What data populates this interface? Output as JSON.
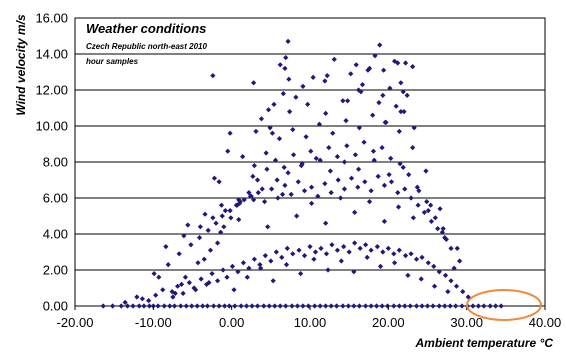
{
  "chart_data": {
    "type": "scatter",
    "title": "Weather conditions",
    "subtitle": "Czech Republic north-east 2010",
    "note": "hour samples",
    "xlabel": "Ambient temperature °C",
    "ylabel": "Wind velocity m/s",
    "xlim": [
      -20,
      40
    ],
    "ylim": [
      0,
      16
    ],
    "x_ticks": [
      "-20.00",
      "-10.00",
      "0.00",
      "10.00",
      "20.00",
      "30.00",
      "40.00"
    ],
    "y_ticks": [
      "0.00",
      "2.00",
      "4.00",
      "6.00",
      "8.00",
      "10.00",
      "12.00",
      "14.00",
      "16.00"
    ],
    "grid": "horizontal",
    "marker_color": "#1f1a7a",
    "highlight_color": "#f08a3c",
    "series": [
      {
        "x": [
          -16.4,
          -15.2,
          -14.1,
          -13.3,
          -12.6,
          -11.8,
          -11.2,
          -10.5,
          -10.0,
          -9.4,
          -8.6,
          -7.9,
          -7.3,
          -6.5,
          -5.8,
          -5.1,
          -4.4,
          -3.7,
          -3.1,
          -2.3,
          -1.6,
          -0.9,
          -0.3,
          0.4,
          1.2,
          1.9,
          2.6,
          3.3,
          4.1,
          4.8,
          5.5,
          6.2,
          6.9,
          7.7,
          8.4,
          9.1,
          9.8,
          10.6,
          11.3,
          12.0,
          12.7,
          13.4,
          14.2,
          14.9,
          15.6,
          16.3,
          17.1,
          17.8,
          18.5,
          19.2,
          19.9,
          20.7,
          21.4,
          22.1,
          22.8,
          23.6,
          24.3,
          25.0,
          25.7,
          26.5,
          27.2,
          27.9,
          28.6,
          29.4,
          30.1,
          30.8,
          31.5,
          32.2,
          33.0,
          33.7,
          34.4,
          -10.6,
          -9.7,
          -8.8,
          -7.5,
          -6.9,
          -6.2,
          -5.4,
          -4.6,
          -3.9,
          -3.2,
          -2.5,
          -1.8,
          -1.1,
          -0.6,
          0.1,
          0.8,
          1.5,
          2.2,
          2.9,
          3.6,
          4.3,
          5.0,
          5.7,
          6.4,
          7.1,
          7.8,
          8.6,
          9.3,
          10.0,
          10.7,
          11.4,
          12.1,
          12.8,
          13.5,
          14.3,
          15.0,
          15.7,
          16.4,
          17.1,
          17.8,
          18.6,
          19.3,
          20.0,
          20.7,
          21.4,
          22.2,
          22.9,
          23.6,
          24.3,
          25.1,
          25.8,
          26.5,
          27.3,
          28.0,
          28.7,
          29.5,
          30.2,
          -9.3,
          -8.1,
          -6.7,
          -5.2,
          -4.1,
          -3.0,
          -2.0,
          -1.2,
          -0.2,
          0.7,
          1.6,
          2.5,
          3.4,
          4.2,
          5.1,
          5.9,
          6.8,
          7.6,
          8.5,
          9.3,
          10.2,
          11.0,
          11.9,
          12.7,
          13.6,
          14.4,
          15.3,
          16.1,
          17.0,
          17.8,
          18.7,
          19.5,
          20.4,
          21.2,
          22.1,
          22.9,
          23.8,
          24.6,
          25.5,
          26.3,
          27.2,
          28.0,
          29.1,
          -7.6,
          -5.9,
          -4.3,
          -2.7,
          -1.4,
          -0.1,
          1.0,
          2.2,
          3.3,
          4.5,
          5.6,
          6.7,
          7.9,
          9.0,
          10.1,
          11.3,
          12.4,
          13.5,
          14.7,
          15.8,
          16.9,
          18.1,
          19.2,
          20.3,
          21.5,
          22.6,
          23.7,
          24.9,
          26.0,
          27.4,
          -6.4,
          -3.5,
          -1.0,
          0.9,
          2.7,
          4.4,
          6.1,
          7.8,
          9.5,
          11.2,
          12.9,
          14.6,
          16.3,
          18.0,
          19.7,
          21.4,
          23.1,
          24.8,
          26.6,
          -1.8,
          0.6,
          2.9,
          5.2,
          7.4,
          9.7,
          12.0,
          14.2,
          16.5,
          18.8,
          21.0,
          23.3,
          -2.2,
          -0.5,
          3.8,
          6.6,
          9.1,
          11.9,
          15.2,
          17.6,
          20.2,
          22.4,
          1.4,
          4.7,
          7.3,
          13.1,
          15.9,
          18.3,
          21.6,
          -1.6,
          5.4,
          8.2,
          12.2,
          16.7,
          19.4,
          22.0,
          3.1,
          6.2,
          10.4,
          14.8,
          18.9,
          21.2,
          -11.4,
          -7.2,
          -4.8,
          -2.9,
          0.3,
          2.0,
          3.7,
          5.3,
          7.0,
          8.8,
          10.5,
          12.3,
          14.0,
          15.6,
          17.3,
          19.0,
          20.8,
          22.5,
          24.2,
          25.9,
          27.6,
          -8.4,
          -5.6,
          -3.4,
          -1.3,
          0.9,
          2.8,
          4.6,
          6.5,
          8.3,
          10.2,
          12.0,
          13.9,
          15.7,
          17.6,
          19.5,
          21.3,
          23.2,
          25.1,
          26.9,
          28.8,
          -13.6,
          -12.1,
          -9.9,
          -6.1,
          -4.0,
          -2.4,
          -0.8,
          1.1,
          2.4,
          3.9,
          5.8,
          7.2,
          8.9,
          10.8,
          12.6,
          14.4,
          16.2,
          18.2,
          20.1,
          21.9,
          23.9,
          25.4,
          27.0,
          28.4,
          4.9,
          6.8,
          7.2,
          17.4,
          19.6,
          20.8,
          21.9,
          22.2,
          23.1,
          -2.4,
          6.9,
          19.3,
          21.6,
          16.2,
          2.8,
          -0.2
        ],
        "y": [
          0.0,
          0.0,
          0.0,
          0.0,
          0.0,
          0.0,
          0.0,
          0.0,
          0.0,
          0.0,
          0.0,
          0.0,
          0.0,
          0.0,
          0.0,
          0.0,
          0.0,
          0.0,
          0.0,
          0.0,
          0.0,
          0.0,
          0.0,
          0.0,
          0.0,
          0.0,
          0.0,
          0.0,
          0.0,
          0.0,
          0.0,
          0.0,
          0.0,
          0.0,
          0.0,
          0.0,
          0.0,
          0.0,
          0.0,
          0.0,
          0.0,
          0.0,
          0.0,
          0.0,
          0.0,
          0.0,
          0.0,
          0.0,
          0.0,
          0.0,
          0.0,
          0.0,
          0.0,
          0.0,
          0.0,
          0.0,
          0.0,
          0.0,
          0.0,
          0.0,
          0.0,
          0.0,
          0.0,
          0.0,
          0.0,
          0.0,
          0.0,
          0.0,
          0.0,
          0.0,
          0.0,
          0.3,
          0.6,
          0.9,
          0.5,
          1.1,
          0.7,
          1.3,
          0.9,
          1.5,
          1.2,
          1.8,
          1.4,
          2.0,
          1.6,
          2.2,
          1.9,
          2.4,
          2.1,
          2.6,
          2.3,
          2.8,
          2.5,
          3.0,
          2.7,
          3.2,
          2.9,
          3.1,
          2.8,
          3.3,
          3.0,
          3.2,
          2.9,
          3.4,
          3.1,
          3.3,
          3.0,
          3.5,
          3.2,
          3.4,
          3.1,
          3.3,
          3.0,
          3.2,
          2.9,
          3.1,
          2.8,
          2.9,
          2.6,
          2.7,
          2.4,
          2.2,
          1.9,
          1.7,
          1.4,
          1.1,
          0.8,
          0.5,
          1.6,
          2.3,
          2.9,
          3.4,
          3.8,
          4.2,
          4.6,
          5.0,
          5.3,
          5.6,
          5.9,
          6.1,
          6.3,
          5.8,
          6.5,
          6.0,
          6.7,
          6.2,
          6.9,
          6.4,
          6.6,
          6.1,
          6.8,
          6.3,
          7.0,
          6.5,
          7.1,
          6.6,
          6.9,
          6.4,
          7.2,
          6.7,
          6.9,
          6.3,
          6.5,
          6.0,
          5.6,
          5.2,
          4.7,
          4.3,
          3.8,
          3.2,
          2.5,
          0.8,
          1.6,
          2.4,
          3.1,
          4.1,
          4.9,
          5.7,
          6.3,
          7.0,
          7.6,
          8.1,
          7.7,
          8.4,
          7.9,
          8.6,
          8.1,
          8.8,
          8.3,
          8.9,
          8.4,
          9.1,
          8.6,
          8.8,
          8.2,
          7.9,
          7.3,
          6.6,
          5.8,
          4.9,
          3.7,
          1.2,
          2.6,
          4.4,
          5.9,
          7.2,
          8.5,
          9.3,
          9.8,
          9.4,
          10.1,
          9.6,
          10.3,
          9.9,
          10.6,
          10.2,
          9.7,
          8.8,
          7.5,
          5.4,
          3.5,
          5.6,
          7.8,
          9.6,
          10.8,
          11.2,
          10.7,
          11.4,
          11.9,
          11.3,
          11.1,
          9.9,
          7.1,
          8.6,
          10.4,
          11.8,
          12.2,
          12.5,
          12.9,
          13.2,
          12.1,
          11.7,
          8.3,
          10.9,
          12.6,
          13.7,
          13.4,
          13.9,
          12.4,
          6.9,
          11.2,
          11.6,
          12.8,
          12.3,
          13.1,
          10.8,
          9.7,
          13.4,
          12.7,
          11.4,
          14.5,
          13.5,
          0.4,
          0.7,
          1.0,
          1.3,
          0.9,
          1.6,
          2.1,
          1.4,
          2.3,
          1.8,
          2.6,
          2.0,
          2.5,
          1.9,
          2.7,
          2.2,
          2.4,
          1.7,
          1.5,
          1.1,
          0.8,
          3.3,
          4.5,
          5.1,
          5.6,
          4.8,
          5.9,
          4.4,
          6.2,
          5.0,
          5.7,
          4.6,
          6.0,
          5.2,
          5.8,
          4.7,
          5.5,
          4.9,
          5.3,
          4.1,
          3.2,
          0.2,
          0.5,
          1.8,
          3.9,
          4.4,
          4.9,
          5.3,
          5.8,
          6.1,
          6.5,
          7.0,
          7.4,
          7.8,
          8.2,
          7.5,
          8.0,
          7.6,
          8.1,
          7.3,
          7.7,
          6.4,
          5.6,
          4.3,
          2.1,
          9.9,
          13.2,
          14.7,
          13.1,
          10.2,
          13.6,
          11.9,
          13.5,
          13.3,
          12.8,
          13.8,
          11.7,
          10.8,
          12.0,
          12.4,
          9.6
        ]
      }
    ]
  }
}
